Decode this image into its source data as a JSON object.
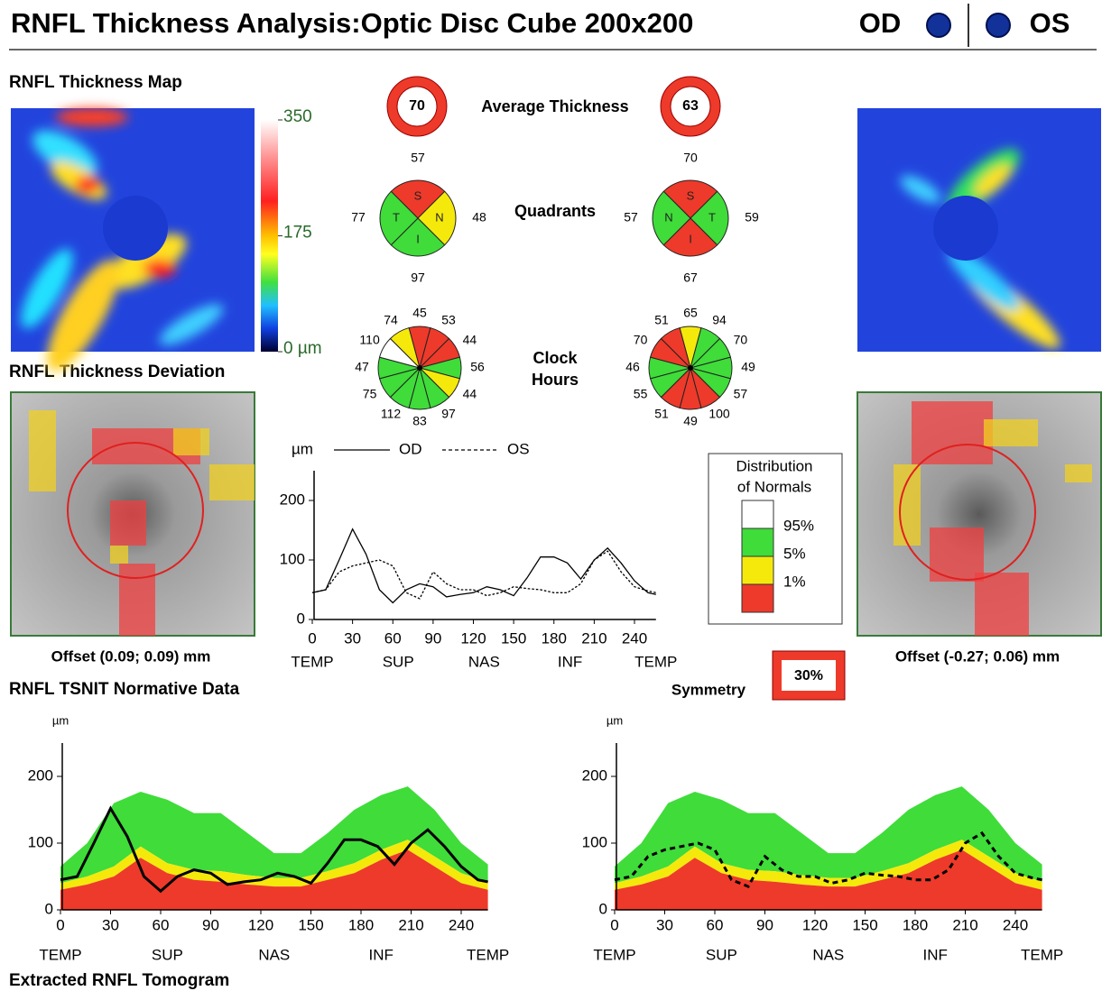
{
  "header": {
    "title": "RNFL Thickness Analysis:Optic Disc Cube 200x200",
    "od_label": "OD",
    "os_label": "OS",
    "eye_color": "#12329a"
  },
  "thickness_map": {
    "title": "RNFL Thickness Map",
    "scale_lim": [
      0,
      350
    ],
    "scale_ticks": [
      {
        "value": 0,
        "label": "0 µm"
      },
      175,
      350
    ]
  },
  "deviation": {
    "title": "RNFL Thickness Deviation",
    "od_offset": "Offset (0.09; 0.09) mm",
    "os_offset": "Offset (-0.27; 0.06) mm"
  },
  "average_thickness": {
    "label": "Average Thickness",
    "od": 70,
    "os": 63
  },
  "quadrants": {
    "label": "Quadrants",
    "od": {
      "sectors": [
        "S",
        "N",
        "I",
        "T"
      ],
      "values": [
        57,
        48,
        97,
        77
      ],
      "colors": [
        "#ee3a2a",
        "#f5e90c",
        "#3fdc3a",
        "#3fdc3a"
      ]
    },
    "os": {
      "sectors": [
        "S",
        "T",
        "I",
        "N"
      ],
      "values": [
        70,
        59,
        67,
        57
      ],
      "colors": [
        "#ee3a2a",
        "#3fdc3a",
        "#ee3a2a",
        "#3fdc3a"
      ]
    }
  },
  "clock_hours": {
    "label": [
      "Clock",
      "Hours"
    ],
    "od": {
      "values": [
        45,
        53,
        44,
        56,
        44,
        97,
        83,
        112,
        75,
        47,
        110,
        74
      ],
      "colors": [
        "#ee3a2a",
        "#ee3a2a",
        "#ee3a2a",
        "#3fdc3a",
        "#f5e90c",
        "#3fdc3a",
        "#3fdc3a",
        "#3fdc3a",
        "#3fdc3a",
        "#3fdc3a",
        "#ffffff",
        "#f5e90c"
      ]
    },
    "os": {
      "values": [
        65,
        94,
        70,
        49,
        57,
        100,
        49,
        51,
        55,
        46,
        70,
        51
      ],
      "colors": [
        "#f5e90c",
        "#3fdc3a",
        "#3fdc3a",
        "#3fdc3a",
        "#3fdc3a",
        "#ee3a2a",
        "#ee3a2a",
        "#ee3a2a",
        "#3fdc3a",
        "#3fdc3a",
        "#ee3a2a",
        "#ee3a2a"
      ]
    }
  },
  "tsnit_chart": {
    "type": "line",
    "y_unit": "µm",
    "x": [
      0,
      10,
      20,
      30,
      40,
      50,
      60,
      70,
      80,
      90,
      100,
      110,
      120,
      130,
      140,
      150,
      160,
      170,
      180,
      190,
      200,
      210,
      220,
      230,
      240,
      250,
      256
    ],
    "series": [
      {
        "name": "OD",
        "dashed": false,
        "values": [
          45,
          50,
          100,
          152,
          110,
          50,
          28,
          50,
          60,
          55,
          38,
          42,
          45,
          55,
          50,
          40,
          70,
          105,
          105,
          95,
          68,
          100,
          120,
          95,
          65,
          45,
          42
        ]
      },
      {
        "name": "OS",
        "dashed": true,
        "values": [
          45,
          50,
          80,
          90,
          95,
          100,
          90,
          45,
          35,
          80,
          60,
          50,
          50,
          40,
          45,
          55,
          52,
          50,
          45,
          45,
          60,
          100,
          115,
          80,
          55,
          48,
          45
        ]
      }
    ],
    "xlim": [
      0,
      256
    ],
    "xticks": [
      0,
      30,
      60,
      90,
      120,
      150,
      180,
      210,
      240
    ],
    "ylim": [
      0,
      250
    ],
    "yticks": [
      0,
      100,
      200
    ],
    "regions": [
      "TEMP",
      "SUP",
      "NAS",
      "INF",
      "TEMP"
    ],
    "region_x": [
      0,
      64,
      128,
      192,
      256
    ]
  },
  "normals_legend": {
    "title": [
      "Distribution",
      "of Normals"
    ],
    "colors": [
      "#ffffff",
      "#3fdc3a",
      "#f5e90c",
      "#ee3a2a"
    ],
    "labels": [
      "95%",
      "5%",
      "1%"
    ]
  },
  "symmetry": {
    "label": "Symmetry",
    "value": "30%"
  },
  "normative": {
    "title": "RNFL TSNIT Normative Data",
    "x": [
      0,
      16,
      32,
      48,
      64,
      80,
      96,
      112,
      128,
      144,
      160,
      176,
      192,
      208,
      224,
      240,
      256
    ],
    "red": [
      30,
      38,
      50,
      78,
      55,
      45,
      42,
      38,
      35,
      35,
      45,
      55,
      75,
      90,
      65,
      40,
      30
    ],
    "yellow": [
      40,
      50,
      65,
      95,
      70,
      60,
      58,
      52,
      48,
      48,
      58,
      70,
      90,
      105,
      80,
      55,
      42
    ],
    "green": [
      65,
      100,
      160,
      177,
      165,
      145,
      145,
      115,
      85,
      85,
      115,
      150,
      172,
      185,
      150,
      100,
      68
    ]
  },
  "tomogram": {
    "title": "Extracted RNFL Tomogram"
  }
}
